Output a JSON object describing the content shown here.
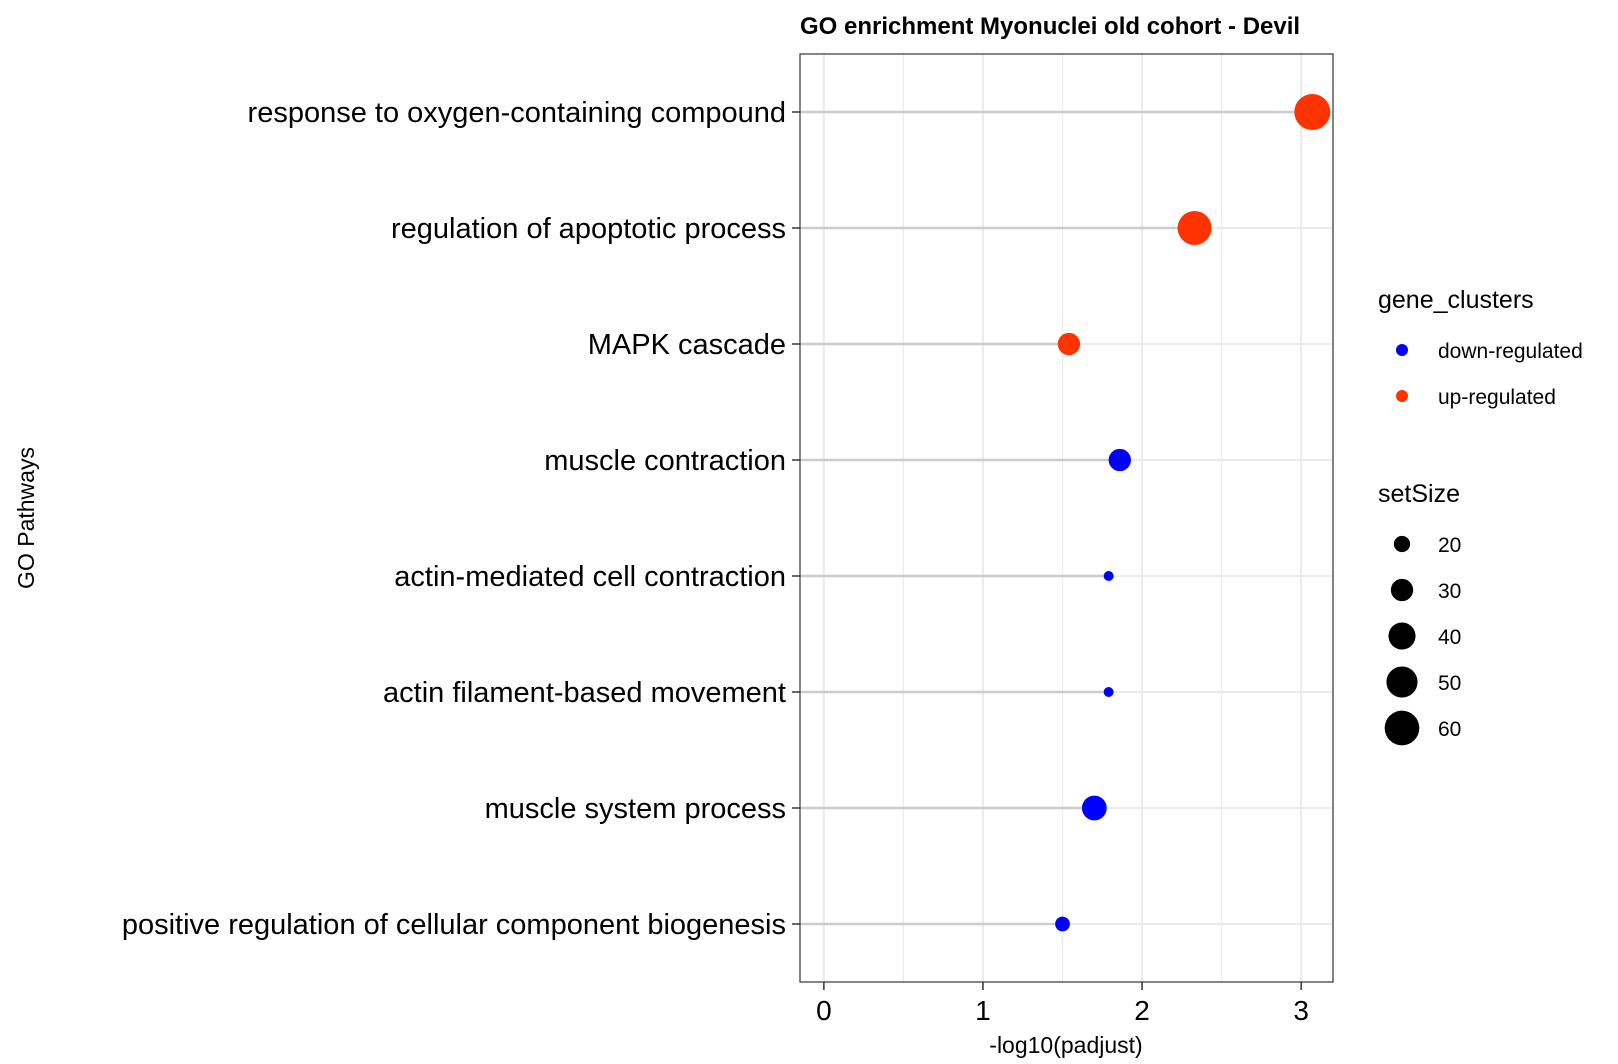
{
  "chart_data": {
    "type": "scatter",
    "title": "GO enrichment Myonuclei old cohort - Devil",
    "xlabel": "-log10(padjust)",
    "ylabel": "GO Pathways",
    "xlim": [
      -0.15,
      3.2
    ],
    "xticks": [
      0,
      1,
      2,
      3
    ],
    "grid": true,
    "categories": [
      "response to oxygen-containing compound",
      "regulation of apoptotic process",
      "MAPK cascade",
      "muscle contraction",
      "actin-mediated cell contraction",
      "actin filament-based movement",
      "muscle system process",
      "positive regulation of cellular component biogenesis"
    ],
    "points": [
      {
        "pathway": "response to oxygen-containing compound",
        "x": 3.07,
        "setSize": 64,
        "cluster": "up-regulated"
      },
      {
        "pathway": "regulation of apoptotic process",
        "x": 2.33,
        "setSize": 58,
        "cluster": "up-regulated"
      },
      {
        "pathway": "MAPK cascade",
        "x": 1.54,
        "setSize": 30,
        "cluster": "up-regulated"
      },
      {
        "pathway": "muscle contraction",
        "x": 1.86,
        "setSize": 30,
        "cluster": "down-regulated"
      },
      {
        "pathway": "actin-mediated cell contraction",
        "x": 1.79,
        "setSize": 13,
        "cluster": "down-regulated"
      },
      {
        "pathway": "actin filament-based movement",
        "x": 1.79,
        "setSize": 13,
        "cluster": "down-regulated"
      },
      {
        "pathway": "muscle system process",
        "x": 1.7,
        "setSize": 35,
        "cluster": "down-regulated"
      },
      {
        "pathway": "positive regulation of cellular component biogenesis",
        "x": 1.5,
        "setSize": 18,
        "cluster": "down-regulated"
      }
    ],
    "legend": {
      "placement": "right",
      "color_title": "gene_clusters",
      "color_entries": [
        {
          "label": "down-regulated",
          "color": "#0000FF"
        },
        {
          "label": "up-regulated",
          "color": "#FF3300"
        }
      ],
      "size_title": "setSize",
      "size_entries": [
        20,
        30,
        40,
        50,
        60
      ]
    },
    "colors": {
      "down-regulated": "#0000FF",
      "up-regulated": "#FF3300",
      "segment": "#CCCCCC",
      "grid": "#EBEBEB",
      "panel_border": "#333333"
    }
  }
}
